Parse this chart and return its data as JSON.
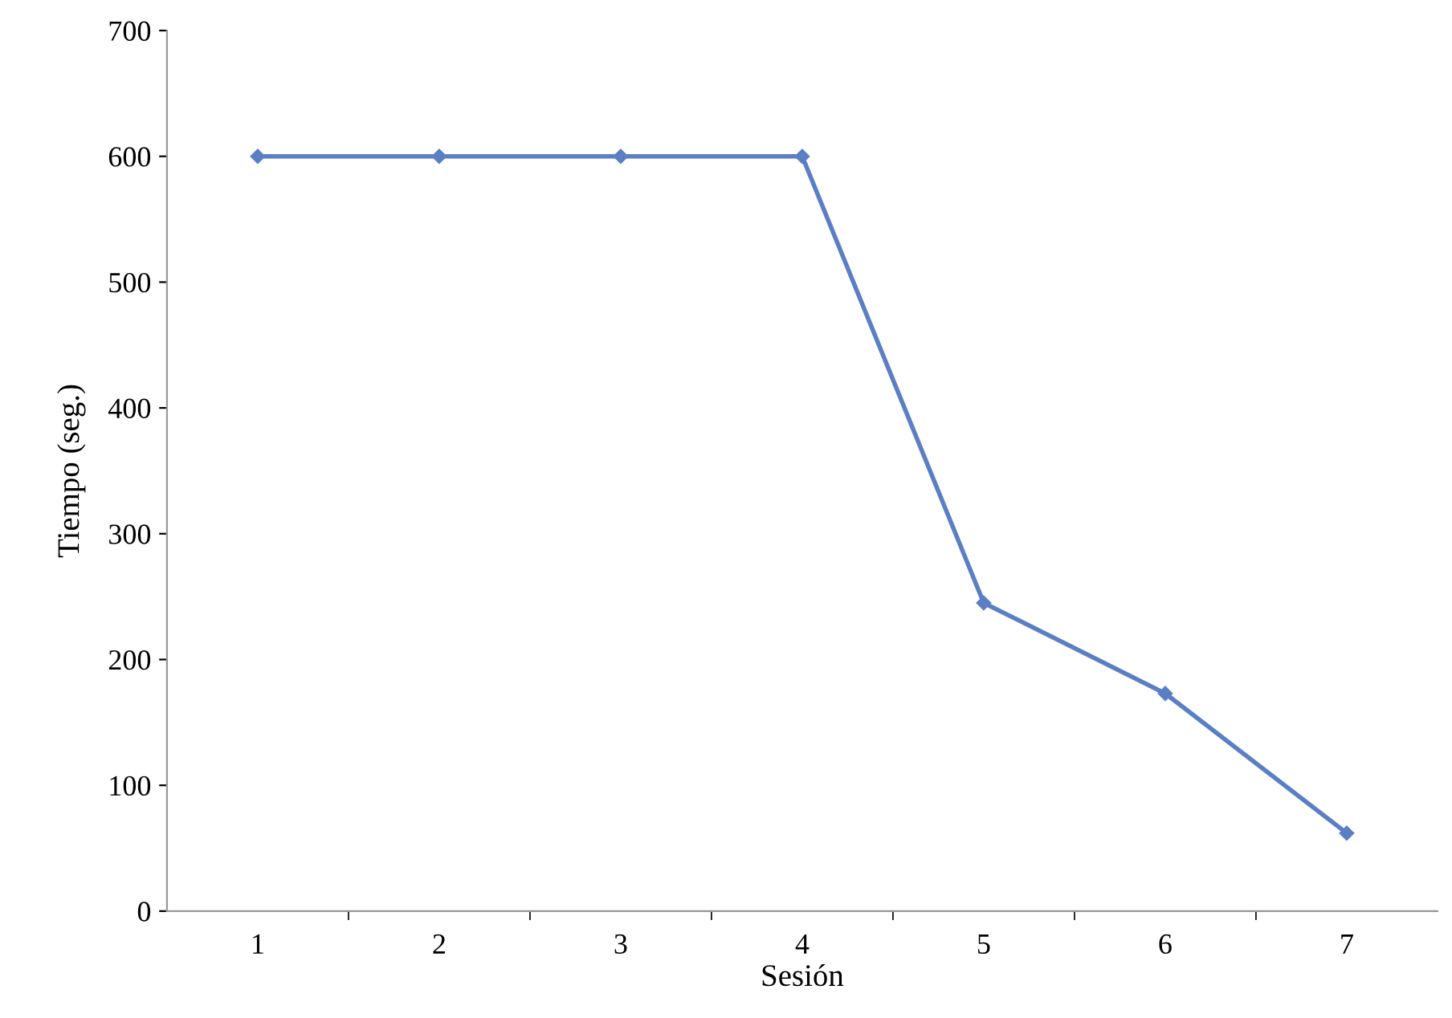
{
  "chart_data": {
    "type": "line",
    "xlabel": "Sesión",
    "ylabel": "Tiempo (seg.)",
    "categories": [
      "1",
      "2",
      "3",
      "4",
      "5",
      "6",
      "7"
    ],
    "series": [
      {
        "color": "#5b7fc4",
        "values": [
          600,
          600,
          600,
          600,
          245,
          173,
          62
        ]
      }
    ],
    "ylim": [
      0,
      700
    ],
    "yticks": [
      0,
      100,
      200,
      300,
      400,
      500,
      600,
      700
    ],
    "marker": "diamond",
    "line_style": "solid",
    "grid": false,
    "legend": false
  }
}
